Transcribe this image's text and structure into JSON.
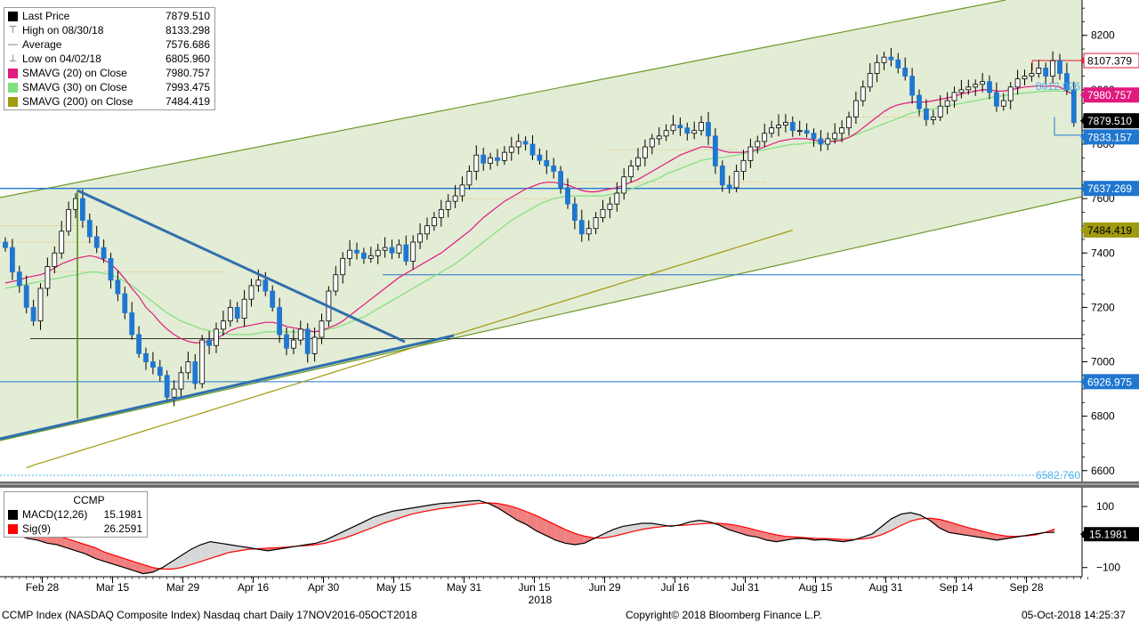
{
  "legend": {
    "rows": [
      {
        "label": "Last Price",
        "value": "7879.510",
        "marker": "square",
        "color": "#000000"
      },
      {
        "label": "High on 08/30/18",
        "value": "8133.298",
        "marker": "high",
        "color": "#666666"
      },
      {
        "label": "Average",
        "value": "7576.686",
        "marker": "avg",
        "color": "#666666"
      },
      {
        "label": "Low on 04/02/18",
        "value": "6805.960",
        "marker": "low",
        "color": "#666666"
      },
      {
        "label": "SMAVG (20)  on Close",
        "value": "7980.757",
        "marker": "square",
        "color": "#e0197e"
      },
      {
        "label": "SMAVG (30)  on Close",
        "value": "7993.475",
        "marker": "square",
        "color": "#7fe07f"
      },
      {
        "label": "SMAVG (200)  on Close",
        "value": "7484.419",
        "marker": "square",
        "color": "#a09a10"
      }
    ]
  },
  "macd_legend": {
    "title": "CCMP",
    "rows": [
      {
        "label": "MACD(12,26)",
        "value": "15.1981",
        "color": "#000000"
      },
      {
        "label": "Sig(9)",
        "value": "26.2591",
        "color": "#ff0000"
      }
    ]
  },
  "price_tags": [
    {
      "text": "8107.379",
      "bg": "#ffffff",
      "fg": "#000000",
      "border": "#e0192e",
      "value": 8107.379
    },
    {
      "text": "7980.757",
      "bg": "#e0197e",
      "fg": "#ffffff",
      "border": "#e0197e",
      "value": 7980.757
    },
    {
      "text": "7879.510",
      "bg": "#000000",
      "fg": "#ffffff",
      "border": "#000000",
      "value": 7879.51
    },
    {
      "text": "7833.157",
      "bg": "#1f77d0",
      "fg": "#ffffff",
      "border": "#1f77d0",
      "value": 7833.157
    },
    {
      "text": "7637.269",
      "bg": "#1f77d0",
      "fg": "#ffffff",
      "border": "#1f77d0",
      "value": 7637.269
    },
    {
      "text": "7484.419",
      "bg": "#a09a10",
      "fg": "#000000",
      "border": "#a09a10",
      "value": 7484.419
    },
    {
      "text": "6926.975",
      "bg": "#1f77d0",
      "fg": "#ffffff",
      "border": "#1f77d0",
      "value": 6926.975
    }
  ],
  "inline_labels": [
    {
      "text": "8012.026",
      "value": 8012.026,
      "color": "#4fb3e8"
    },
    {
      "text": "6582.760",
      "value": 6582.76,
      "color": "#4fb3e8"
    }
  ],
  "macd_tag": {
    "text": "15.1981",
    "bg": "#000000",
    "fg": "#ffffff",
    "value": 15.1981
  },
  "footer": {
    "left": "CCMP Index (NASDAQ Composite Index) Nasdaq chart  Daily 17NOV2016-05OCT2018",
    "center": "Copyright© 2018 Bloomberg Finance L.P.",
    "right": "05-Oct-2018  14:25:37"
  },
  "chart_data": [
    {
      "type": "candlestick",
      "title": "",
      "xlabel": "2018",
      "ylabel": "",
      "ylim": [
        6560,
        8330
      ],
      "yticks": [
        6600,
        6800,
        7000,
        7200,
        7400,
        7600,
        7800,
        8000,
        8200
      ],
      "grid": false,
      "legend_position": "top-left",
      "xtick_labels": [
        "Feb 28",
        "Mar 15",
        "Mar 29",
        "Apr 16",
        "Apr 30",
        "May 15",
        "May 31",
        "Jun 15",
        "Jun 29",
        "Jul 16",
        "Jul 31",
        "Aug 15",
        "Aug 31",
        "Sep 14",
        "Sep 28"
      ],
      "xtick_index": [
        5,
        15,
        25,
        35,
        45,
        55,
        65,
        75,
        85,
        95,
        105,
        115,
        125,
        135,
        145
      ],
      "closes": [
        7420,
        7330,
        7280,
        7200,
        7150,
        7270,
        7350,
        7400,
        7480,
        7560,
        7600,
        7520,
        7460,
        7420,
        7380,
        7300,
        7250,
        7180,
        7100,
        7030,
        7000,
        6980,
        6950,
        6870,
        6900,
        6960,
        7000,
        6920,
        7080,
        7060,
        7120,
        7150,
        7200,
        7160,
        7230,
        7280,
        7300,
        7260,
        7200,
        7100,
        7050,
        7080,
        7120,
        7030,
        7090,
        7150,
        7260,
        7320,
        7380,
        7410,
        7400,
        7380,
        7390,
        7410,
        7420,
        7400,
        7430,
        7370,
        7440,
        7470,
        7500,
        7530,
        7560,
        7590,
        7610,
        7650,
        7700,
        7760,
        7730,
        7750,
        7740,
        7770,
        7790,
        7810,
        7800,
        7760,
        7740,
        7720,
        7700,
        7640,
        7580,
        7520,
        7470,
        7490,
        7530,
        7560,
        7580,
        7620,
        7680,
        7720,
        7750,
        7790,
        7820,
        7830,
        7850,
        7870,
        7860,
        7840,
        7850,
        7880,
        7830,
        7720,
        7650,
        7640,
        7700,
        7740,
        7790,
        7810,
        7840,
        7860,
        7870,
        7880,
        7850,
        7850,
        7840,
        7820,
        7800,
        7820,
        7840,
        7860,
        7900,
        7960,
        8010,
        8060,
        8100,
        8120,
        8110,
        8080,
        8050,
        7980,
        7930,
        7890,
        7900,
        7940,
        7960,
        7990,
        8000,
        8010,
        8020,
        8030,
        7990,
        7940,
        7960,
        8010,
        8040,
        8050,
        8060,
        8080,
        8050,
        8107,
        8060,
        8000,
        7879
      ],
      "sma20": [
        7290,
        7295,
        7300,
        7310,
        7315,
        7320,
        7330,
        7345,
        7360,
        7370,
        7380,
        7385,
        7390,
        7385,
        7375,
        7360,
        7335,
        7305,
        7270,
        7240,
        7200,
        7175,
        7145,
        7120,
        7100,
        7085,
        7075,
        7070,
        7070,
        7075,
        7085,
        7100,
        7115,
        7125,
        7130,
        7135,
        7140,
        7145,
        7145,
        7140,
        7130,
        7125,
        7120,
        7115,
        7110,
        7115,
        7125,
        7135,
        7150,
        7170,
        7190,
        7210,
        7230,
        7250,
        7270,
        7290,
        7310,
        7325,
        7340,
        7355,
        7370,
        7385,
        7400,
        7420,
        7440,
        7460,
        7480,
        7505,
        7530,
        7550,
        7570,
        7590,
        7605,
        7620,
        7635,
        7645,
        7655,
        7660,
        7660,
        7655,
        7650,
        7640,
        7630,
        7625,
        7625,
        7630,
        7635,
        7640,
        7650,
        7660,
        7670,
        7685,
        7700,
        7715,
        7730,
        7745,
        7760,
        7770,
        7780,
        7790,
        7790,
        7785,
        7775,
        7770,
        7770,
        7770,
        7775,
        7780,
        7790,
        7800,
        7810,
        7815,
        7820,
        7820,
        7820,
        7815,
        7810,
        7810,
        7810,
        7815,
        7825,
        7840,
        7860,
        7880,
        7900,
        7920,
        7935,
        7945,
        7950,
        7955,
        7955,
        7955,
        7960,
        7965,
        7970,
        7975,
        7985,
        7990,
        7995,
        8000,
        8000,
        7995,
        7995,
        8000,
        8005,
        8010,
        8012,
        8015,
        8012,
        8015,
        8010,
        7995,
        7980.757
      ],
      "sma30": [
        7270,
        7275,
        7280,
        7285,
        7290,
        7295,
        7300,
        7305,
        7310,
        7315,
        7320,
        7325,
        7330,
        7330,
        7325,
        7320,
        7310,
        7295,
        7280,
        7260,
        7240,
        7220,
        7200,
        7180,
        7165,
        7150,
        7140,
        7130,
        7120,
        7115,
        7110,
        7105,
        7100,
        7100,
        7100,
        7100,
        7105,
        7110,
        7110,
        7110,
        7110,
        7110,
        7110,
        7110,
        7110,
        7115,
        7120,
        7125,
        7135,
        7145,
        7155,
        7165,
        7180,
        7195,
        7210,
        7225,
        7240,
        7255,
        7270,
        7285,
        7300,
        7315,
        7330,
        7345,
        7360,
        7380,
        7400,
        7420,
        7440,
        7460,
        7480,
        7500,
        7520,
        7535,
        7550,
        7565,
        7580,
        7590,
        7600,
        7605,
        7610,
        7610,
        7610,
        7610,
        7610,
        7610,
        7615,
        7620,
        7625,
        7635,
        7645,
        7655,
        7665,
        7675,
        7690,
        7700,
        7710,
        7720,
        7730,
        7740,
        7745,
        7750,
        7750,
        7755,
        7760,
        7765,
        7770,
        7775,
        7780,
        7785,
        7790,
        7795,
        7800,
        7800,
        7805,
        7805,
        7805,
        7810,
        7815,
        7820,
        7825,
        7835,
        7845,
        7855,
        7865,
        7875,
        7885,
        7895,
        7905,
        7915,
        7920,
        7925,
        7930,
        7935,
        7940,
        7945,
        7950,
        7955,
        7960,
        7965,
        7970,
        7975,
        7978,
        7982,
        7985,
        7988,
        7990,
        7993,
        7995,
        7996,
        7995,
        7994,
        7993.475
      ],
      "sma200": [
        6610,
        6620,
        6628,
        6636,
        6644,
        6652,
        6660,
        6668,
        6676,
        6684,
        6692,
        6700,
        6708,
        6716,
        6724,
        6732,
        6740,
        6748,
        6756,
        6764,
        6772,
        6780,
        6788,
        6796,
        6804,
        6812,
        6820,
        6828,
        6836,
        6844,
        6852,
        6860,
        6868,
        6876,
        6884,
        6892,
        6900,
        6908,
        6916,
        6924,
        6932,
        6940,
        6948,
        6956,
        6964,
        6972,
        6980,
        6988,
        6996,
        7004,
        7012,
        7020,
        7028,
        7036,
        7044,
        7052,
        7060,
        7068,
        7076,
        7084,
        7092,
        7100,
        7108,
        7116,
        7124,
        7132,
        7140,
        7148,
        7156,
        7164,
        7172,
        7180,
        7188,
        7196,
        7204,
        7212,
        7220,
        7228,
        7236,
        7244,
        7252,
        7260,
        7268,
        7276,
        7284,
        7292,
        7300,
        7308,
        7316,
        7324,
        7332,
        7340,
        7348,
        7356,
        7364,
        7372,
        7380,
        7388,
        7396,
        7404,
        7412,
        7420,
        7428,
        7436,
        7444,
        7452,
        7460,
        7468,
        7476,
        7484.419
      ],
      "horizontal_levels": [
        8107.379,
        7833.157,
        7637.269,
        7320,
        7085,
        6926.975,
        6582.76
      ]
    },
    {
      "type": "line",
      "title": "CCMP",
      "ylim": [
        -130,
        150
      ],
      "yticks": [
        -100,
        0,
        100
      ],
      "series": [
        {
          "name": "MACD(12,26)",
          "values": [
            10,
            5,
            -5,
            -10,
            -20,
            -25,
            -35,
            -45,
            -55,
            -70,
            -80,
            -90,
            -100,
            -110,
            -120,
            -115,
            -100,
            -80,
            -60,
            -40,
            -25,
            -15,
            -20,
            -25,
            -30,
            -35,
            -40,
            -45,
            -40,
            -35,
            -30,
            -25,
            -20,
            -10,
            5,
            20,
            35,
            50,
            65,
            75,
            85,
            90,
            95,
            100,
            105,
            110,
            112,
            115,
            118,
            120,
            110,
            95,
            75,
            55,
            40,
            20,
            5,
            -10,
            -20,
            -25,
            -20,
            -5,
            10,
            25,
            35,
            40,
            45,
            45,
            40,
            35,
            40,
            50,
            55,
            50,
            40,
            25,
            15,
            5,
            0,
            -10,
            -15,
            -10,
            -5,
            -5,
            -10,
            -8,
            -12,
            -15,
            -10,
            0,
            10,
            35,
            60,
            75,
            80,
            72,
            55,
            30,
            15,
            10,
            5,
            0,
            -5,
            -10,
            -5,
            0,
            5,
            10,
            15,
            15.1981
          ]
        },
        {
          "name": "Sig(9)",
          "values": [
            40,
            35,
            30,
            25,
            15,
            5,
            -5,
            -15,
            -25,
            -35,
            -50,
            -60,
            -70,
            -80,
            -90,
            -100,
            -105,
            -105,
            -100,
            -90,
            -80,
            -70,
            -60,
            -50,
            -45,
            -40,
            -38,
            -36,
            -35,
            -33,
            -30,
            -28,
            -25,
            -20,
            -12,
            -3,
            8,
            20,
            32,
            45,
            55,
            65,
            75,
            82,
            88,
            93,
            97,
            102,
            106,
            110,
            112,
            110,
            104,
            95,
            83,
            70,
            55,
            40,
            25,
            12,
            3,
            -3,
            -3,
            2,
            10,
            18,
            25,
            30,
            34,
            37,
            38,
            40,
            43,
            45,
            45,
            42,
            37,
            30,
            22,
            14,
            7,
            2,
            0,
            -2,
            -4,
            -5,
            -6,
            -8,
            -8,
            -6,
            -2,
            8,
            22,
            38,
            52,
            60,
            62,
            58,
            50,
            40,
            31,
            23,
            15,
            8,
            3,
            2,
            4,
            7,
            15,
            26.2591
          ]
        }
      ]
    }
  ]
}
